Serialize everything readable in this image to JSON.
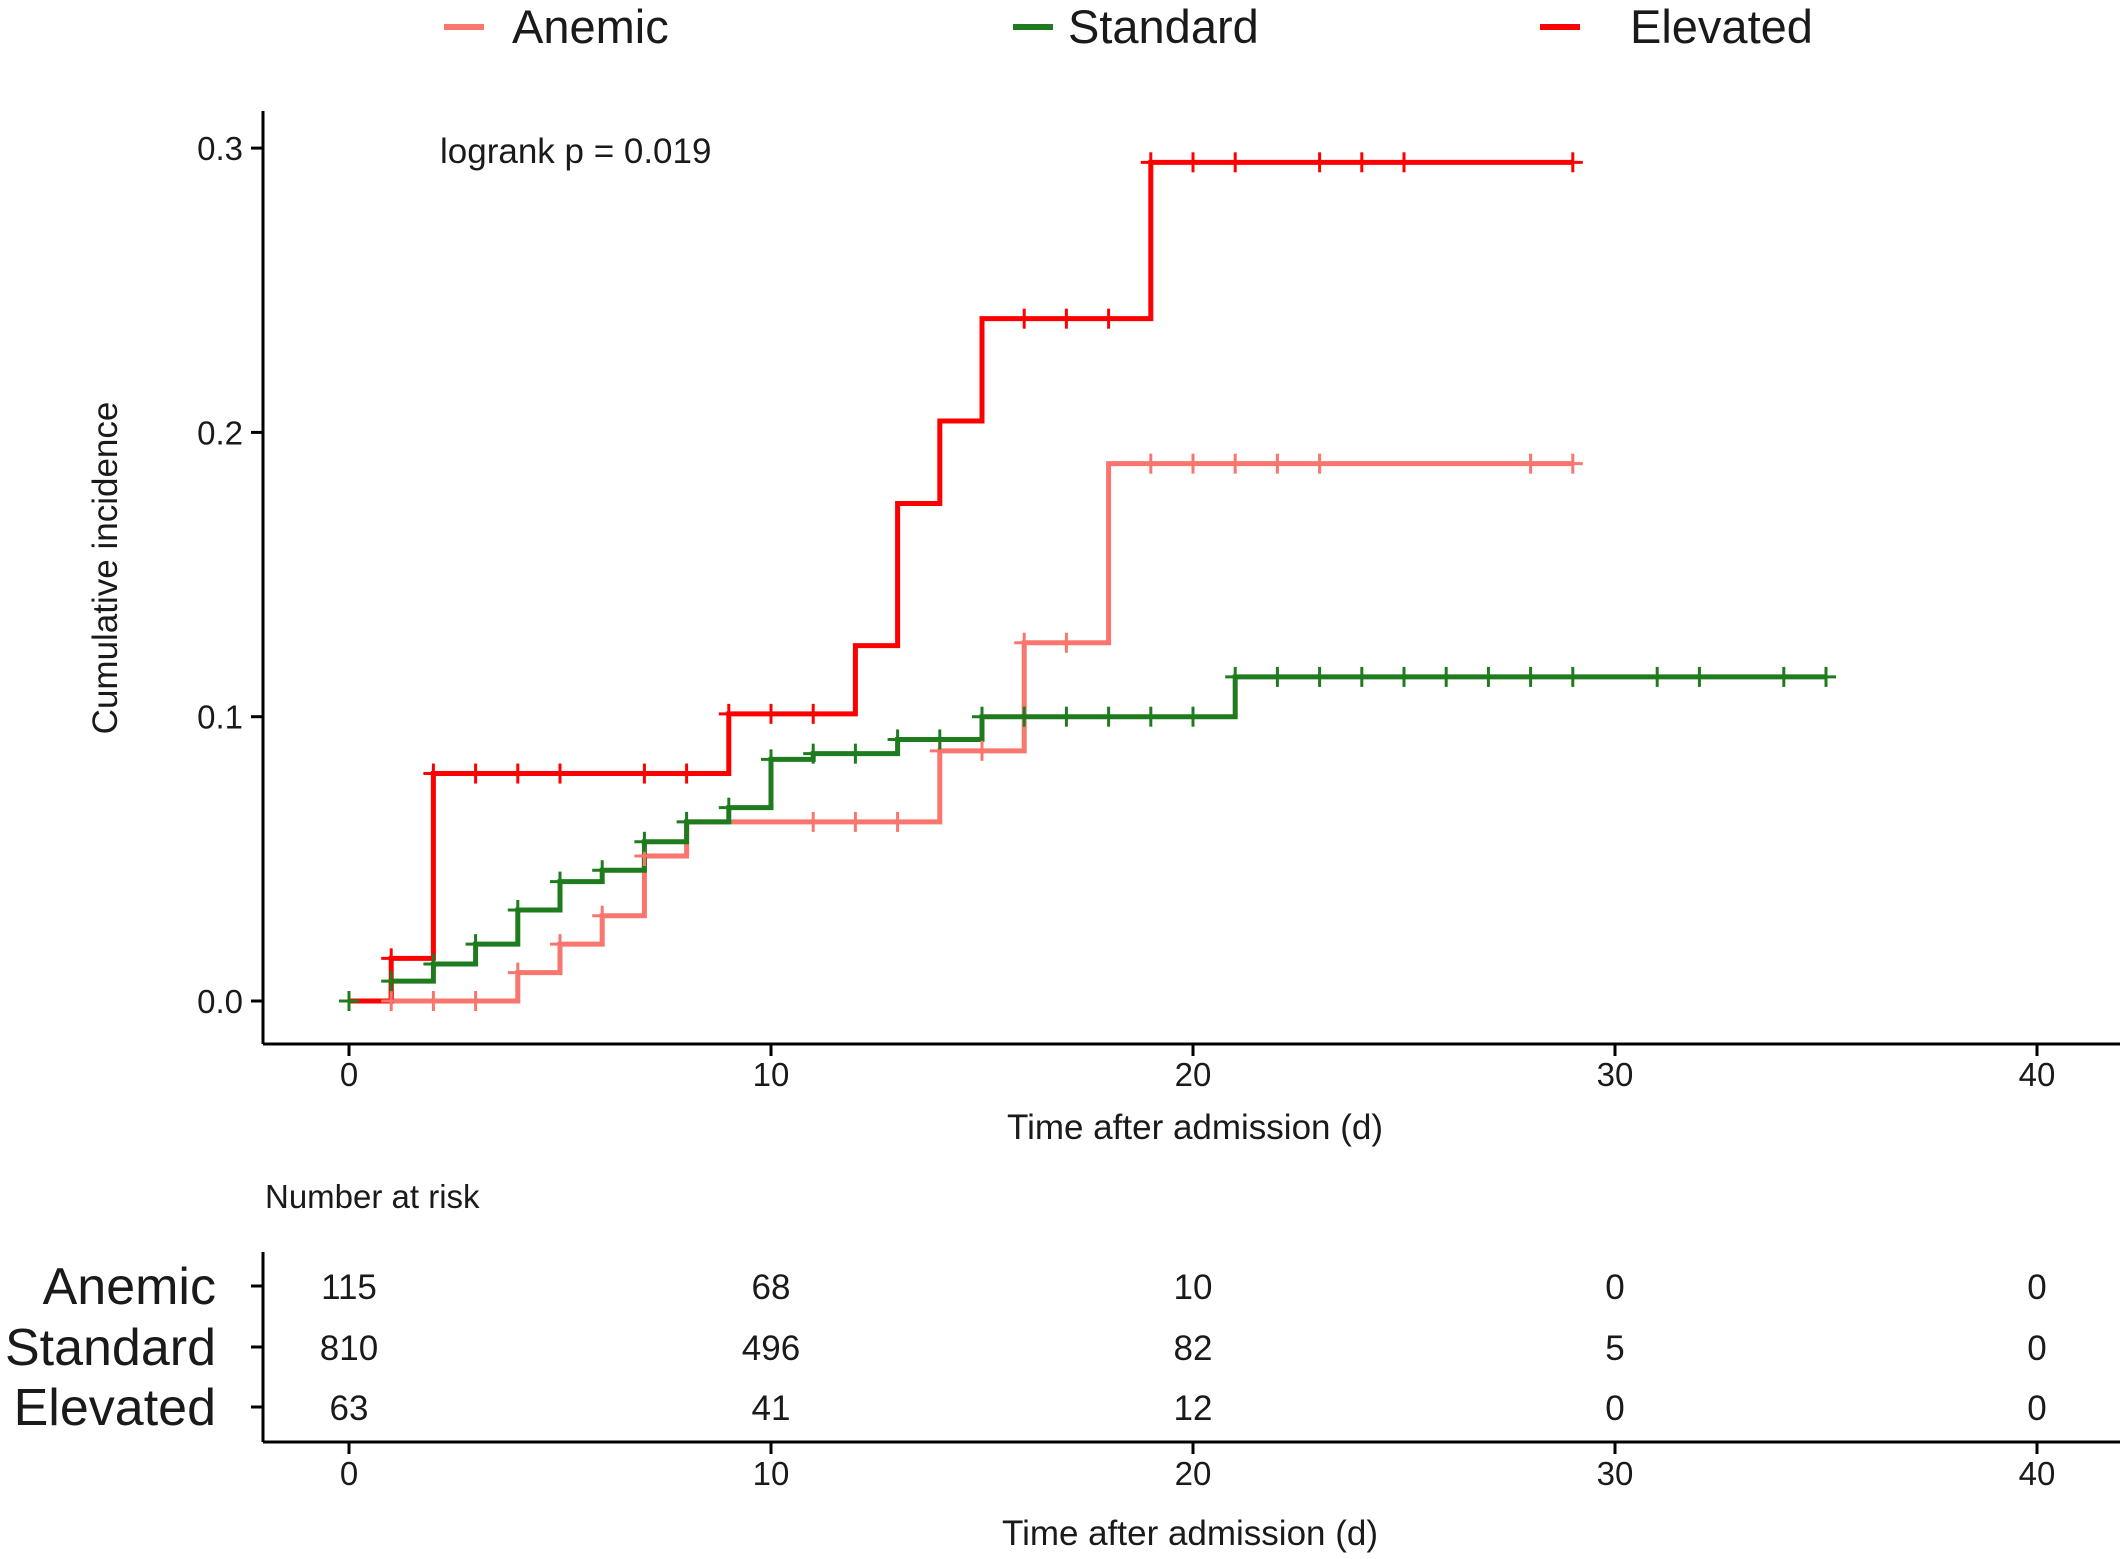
{
  "chart_data": {
    "type": "line",
    "subtype": "kaplan-meier cumulative incidence (step)",
    "annotation": "logrank p = 0.019",
    "xlabel": "Time after admission (d)",
    "ylabel": "Cumulative incidence",
    "xlim": [
      -2,
      42
    ],
    "ylim": [
      -0.012,
      0.31
    ],
    "xticks": [
      0,
      10,
      20,
      30,
      40
    ],
    "yticks": [
      0.0,
      0.1,
      0.2,
      0.3
    ],
    "yticklabels": [
      "0.0",
      "0.1",
      "0.2",
      "0.3"
    ],
    "grid": false,
    "legend_position": "top",
    "series": [
      {
        "name": "Anemic",
        "color": "#F8766D",
        "steps": [
          [
            0,
            0.0
          ],
          [
            4,
            0.01
          ],
          [
            5,
            0.02
          ],
          [
            6,
            0.03
          ],
          [
            7,
            0.051
          ],
          [
            8,
            0.063
          ],
          [
            14,
            0.088
          ],
          [
            16,
            0.126
          ],
          [
            18,
            0.189
          ],
          [
            29,
            0.189
          ]
        ],
        "censor_x": [
          1,
          2,
          3,
          4,
          5,
          6,
          7,
          11,
          12,
          13,
          14,
          15,
          16,
          17,
          19,
          20,
          21,
          22,
          23,
          28,
          29
        ]
      },
      {
        "name": "Standard",
        "color": "#1E7B1E",
        "steps": [
          [
            0,
            0.0
          ],
          [
            1,
            0.007
          ],
          [
            2,
            0.013
          ],
          [
            3,
            0.02
          ],
          [
            4,
            0.032
          ],
          [
            5,
            0.042
          ],
          [
            6,
            0.046
          ],
          [
            7,
            0.056
          ],
          [
            8,
            0.063
          ],
          [
            9,
            0.068
          ],
          [
            10,
            0.085
          ],
          [
            11,
            0.087
          ],
          [
            13,
            0.092
          ],
          [
            15,
            0.1
          ],
          [
            21,
            0.114
          ],
          [
            35,
            0.114
          ]
        ],
        "censor_x": [
          0,
          1,
          2,
          3,
          4,
          5,
          6,
          7,
          8,
          9,
          10,
          11,
          12,
          13,
          14,
          15,
          16,
          17,
          18,
          19,
          20,
          21,
          22,
          23,
          24,
          25,
          26,
          27,
          28,
          29,
          31,
          32,
          34,
          35
        ]
      },
      {
        "name": "Elevated",
        "color": "#FF0000",
        "steps": [
          [
            0,
            0.0
          ],
          [
            1,
            0.015
          ],
          [
            2,
            0.08
          ],
          [
            9,
            0.101
          ],
          [
            12,
            0.125
          ],
          [
            13,
            0.175
          ],
          [
            14,
            0.204
          ],
          [
            15,
            0.24
          ],
          [
            19,
            0.295
          ],
          [
            29,
            0.295
          ]
        ],
        "censor_x": [
          1,
          2,
          3,
          4,
          5,
          7,
          8,
          9,
          10,
          11,
          16,
          17,
          18,
          19,
          20,
          21,
          23,
          24,
          25,
          29
        ]
      }
    ],
    "risk_table": {
      "title": "Number at risk",
      "xlabel": "Time after admission (d)",
      "times": [
        0,
        10,
        20,
        30,
        40
      ],
      "rows": [
        {
          "label": "Anemic",
          "values": [
            "115",
            "68",
            "10",
            "0",
            "0"
          ]
        },
        {
          "label": "Standard",
          "values": [
            "810",
            "496",
            "82",
            "5",
            "0"
          ]
        },
        {
          "label": "Elevated",
          "values": [
            "63",
            "41",
            "12",
            "0",
            "0"
          ]
        }
      ]
    }
  }
}
